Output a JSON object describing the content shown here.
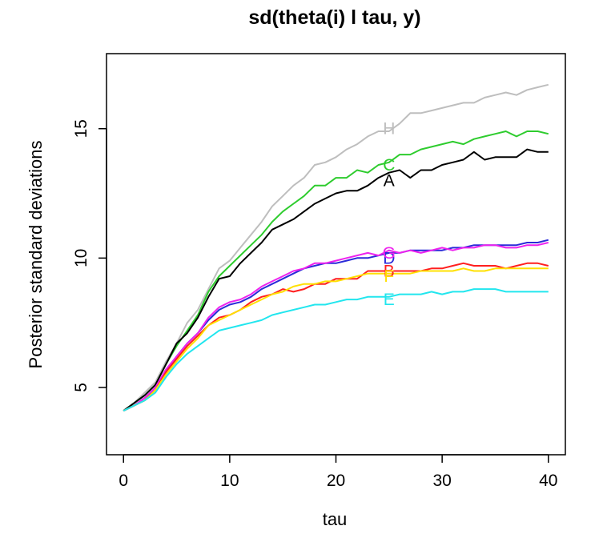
{
  "chart_data": {
    "type": "line",
    "title": "sd(theta(i) l tau, y)",
    "xlabel": "tau",
    "ylabel": "Posterior standard deviations",
    "xlim": [
      -1.6,
      41.6
    ],
    "ylim": [
      2.4,
      17.9
    ],
    "x_ticks": [
      0,
      10,
      20,
      30,
      40
    ],
    "y_ticks": [
      5,
      10,
      15
    ],
    "x": [
      0,
      1,
      2,
      3,
      4,
      5,
      6,
      7,
      8,
      9,
      10,
      11,
      12,
      13,
      14,
      15,
      16,
      17,
      18,
      19,
      20,
      21,
      22,
      23,
      24,
      25,
      26,
      27,
      28,
      29,
      30,
      31,
      32,
      33,
      34,
      35,
      36,
      37,
      38,
      39,
      40
    ],
    "label_x": 25,
    "series": [
      {
        "name": "H",
        "color": "#bebebe",
        "label_y": 15.0,
        "values": [
          4.1,
          4.4,
          4.8,
          5.2,
          6.0,
          6.7,
          7.5,
          8.0,
          8.8,
          9.6,
          9.9,
          10.4,
          10.9,
          11.4,
          12.0,
          12.4,
          12.8,
          13.1,
          13.6,
          13.7,
          13.9,
          14.2,
          14.4,
          14.7,
          14.9,
          14.9,
          15.2,
          15.6,
          15.6,
          15.7,
          15.8,
          15.9,
          16.0,
          16.0,
          16.2,
          16.3,
          16.4,
          16.3,
          16.5,
          16.6,
          16.7
        ]
      },
      {
        "name": "C",
        "color": "#2ecc2e",
        "label_y": 13.6,
        "values": [
          4.1,
          4.4,
          4.7,
          5.1,
          5.9,
          6.6,
          7.2,
          7.8,
          8.7,
          9.3,
          9.7,
          10.1,
          10.5,
          10.9,
          11.4,
          11.8,
          12.1,
          12.4,
          12.8,
          12.8,
          13.1,
          13.1,
          13.4,
          13.3,
          13.6,
          13.7,
          14.0,
          14.0,
          14.2,
          14.3,
          14.4,
          14.5,
          14.4,
          14.6,
          14.7,
          14.8,
          14.9,
          14.7,
          14.9,
          14.9,
          14.8
        ]
      },
      {
        "name": "A",
        "color": "#000000",
        "label_y": 13.0,
        "values": [
          4.1,
          4.4,
          4.7,
          5.1,
          5.9,
          6.7,
          7.1,
          7.7,
          8.5,
          9.2,
          9.3,
          9.8,
          10.2,
          10.6,
          11.1,
          11.3,
          11.5,
          11.8,
          12.1,
          12.3,
          12.5,
          12.6,
          12.6,
          12.8,
          13.1,
          13.3,
          13.4,
          13.1,
          13.4,
          13.4,
          13.6,
          13.7,
          13.8,
          14.1,
          13.8,
          13.9,
          13.9,
          13.9,
          14.2,
          14.1,
          14.1
        ]
      },
      {
        "name": "D",
        "color": "#2a2ad8",
        "label_y": 10.0,
        "values": [
          4.1,
          4.3,
          4.6,
          4.9,
          5.6,
          6.2,
          6.7,
          7.1,
          7.6,
          8.0,
          8.2,
          8.3,
          8.5,
          8.8,
          9.0,
          9.2,
          9.4,
          9.6,
          9.7,
          9.8,
          9.8,
          9.9,
          10.0,
          10.0,
          10.1,
          10.2,
          10.2,
          10.3,
          10.3,
          10.3,
          10.3,
          10.4,
          10.4,
          10.5,
          10.5,
          10.5,
          10.5,
          10.5,
          10.6,
          10.6,
          10.7
        ]
      },
      {
        "name": "G",
        "color": "#ee22ee",
        "label_y": 10.2,
        "values": [
          4.1,
          4.3,
          4.6,
          5.0,
          5.7,
          6.2,
          6.7,
          7.1,
          7.7,
          8.1,
          8.3,
          8.4,
          8.6,
          8.9,
          9.1,
          9.3,
          9.5,
          9.6,
          9.8,
          9.8,
          9.9,
          10.0,
          10.1,
          10.2,
          10.1,
          10.3,
          10.2,
          10.3,
          10.2,
          10.3,
          10.4,
          10.3,
          10.4,
          10.4,
          10.5,
          10.5,
          10.4,
          10.4,
          10.5,
          10.5,
          10.6
        ]
      },
      {
        "name": "B",
        "color": "#ff1f1f",
        "label_y": 9.5,
        "values": [
          4.1,
          4.3,
          4.5,
          4.9,
          5.6,
          6.1,
          6.6,
          7.0,
          7.4,
          7.7,
          7.8,
          8.0,
          8.3,
          8.5,
          8.6,
          8.8,
          8.7,
          8.8,
          9.0,
          9.0,
          9.2,
          9.2,
          9.2,
          9.5,
          9.5,
          9.5,
          9.5,
          9.5,
          9.5,
          9.6,
          9.6,
          9.7,
          9.8,
          9.7,
          9.7,
          9.7,
          9.6,
          9.7,
          9.8,
          9.8,
          9.7
        ]
      },
      {
        "name": "F",
        "color": "#ffe000",
        "label_y": 9.3,
        "values": [
          4.1,
          4.3,
          4.5,
          4.9,
          5.5,
          6.0,
          6.5,
          6.9,
          7.4,
          7.6,
          7.8,
          8.0,
          8.2,
          8.4,
          8.6,
          8.7,
          8.9,
          9.0,
          9.0,
          9.1,
          9.1,
          9.2,
          9.3,
          9.4,
          9.4,
          9.4,
          9.4,
          9.4,
          9.5,
          9.5,
          9.5,
          9.5,
          9.6,
          9.5,
          9.5,
          9.6,
          9.6,
          9.6,
          9.6,
          9.6,
          9.6
        ]
      },
      {
        "name": "E",
        "color": "#22e6ee",
        "label_y": 8.4,
        "values": [
          4.1,
          4.3,
          4.5,
          4.8,
          5.4,
          5.9,
          6.3,
          6.6,
          6.9,
          7.2,
          7.3,
          7.4,
          7.5,
          7.6,
          7.8,
          7.9,
          8.0,
          8.1,
          8.2,
          8.2,
          8.3,
          8.4,
          8.4,
          8.5,
          8.5,
          8.5,
          8.6,
          8.6,
          8.6,
          8.7,
          8.6,
          8.7,
          8.7,
          8.8,
          8.8,
          8.8,
          8.7,
          8.7,
          8.7,
          8.7,
          8.7
        ]
      }
    ]
  }
}
